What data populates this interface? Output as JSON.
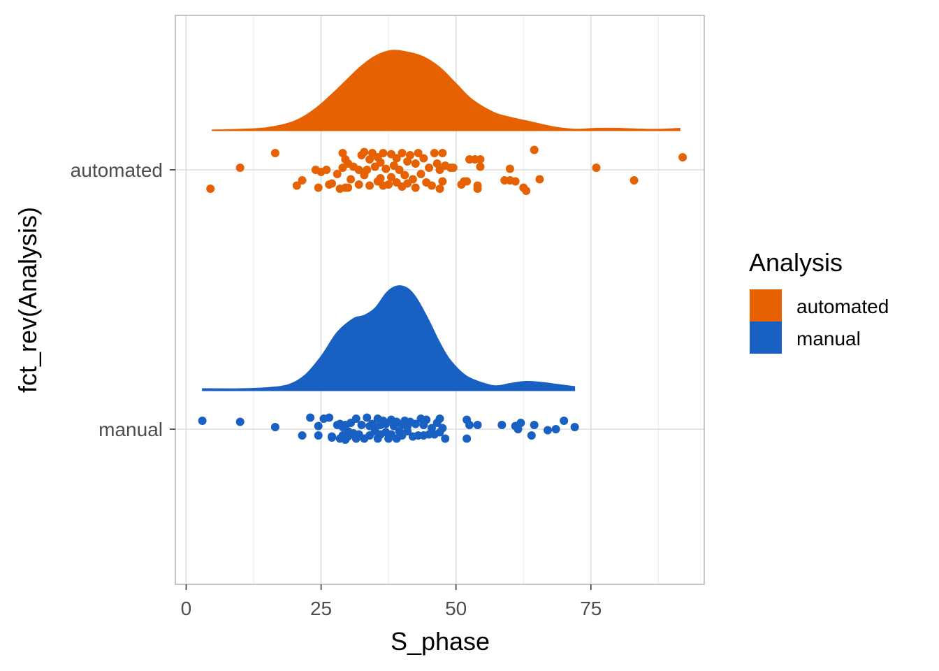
{
  "chart_data": {
    "type": "raincloud",
    "xlabel": "S_phase",
    "ylabel": "fct_rev(Analysis)",
    "xlim": [
      -2,
      96
    ],
    "x_ticks": [
      0,
      25,
      50,
      75
    ],
    "x_tick_labels": [
      "0",
      "25",
      "50",
      "75"
    ],
    "grid": true,
    "legend": {
      "title": "Analysis",
      "position": "right",
      "entries": [
        {
          "label": "automated",
          "color": "#E66101"
        },
        {
          "label": "manual",
          "color": "#1960C3"
        }
      ]
    },
    "categories": [
      "automated",
      "manual"
    ],
    "series": [
      {
        "name": "automated",
        "color": "#E66101",
        "density": {
          "x": [
            4.8,
            10,
            15,
            20,
            24,
            28,
            32,
            35,
            38,
            41,
            44,
            47,
            50,
            53,
            57,
            60,
            64,
            68,
            72,
            76,
            80,
            85,
            88,
            91.5
          ],
          "density": [
            0.01,
            0.02,
            0.04,
            0.12,
            0.28,
            0.52,
            0.78,
            0.93,
            1.0,
            0.98,
            0.92,
            0.79,
            0.59,
            0.39,
            0.23,
            0.17,
            0.11,
            0.05,
            0.02,
            0.03,
            0.03,
            0.02,
            0.02,
            0.03
          ]
        },
        "points": [
          [
            4.5,
            -0.18
          ],
          [
            10,
            0.02
          ],
          [
            16.5,
            0.16
          ],
          [
            20.5,
            -0.15
          ],
          [
            21.5,
            -0.1
          ],
          [
            24,
            0.0
          ],
          [
            24.5,
            -0.17
          ],
          [
            25,
            -0.02
          ],
          [
            26,
            0.0
          ],
          [
            26.5,
            -0.14
          ],
          [
            27,
            -0.13
          ],
          [
            28,
            -0.04
          ],
          [
            28.5,
            -0.18
          ],
          [
            29,
            0.16
          ],
          [
            29,
            0.02
          ],
          [
            29.5,
            -0.17
          ],
          [
            29.5,
            0.1
          ],
          [
            30,
            -0.17
          ],
          [
            30,
            0.06
          ],
          [
            30.5,
            -0.09
          ],
          [
            31,
            0.03
          ],
          [
            32,
            -0.14
          ],
          [
            32,
            0.0
          ],
          [
            32.5,
            0.14
          ],
          [
            33,
            -0.05
          ],
          [
            33,
            0.17
          ],
          [
            33.5,
            0.0
          ],
          [
            34,
            0.1
          ],
          [
            34,
            -0.15
          ],
          [
            34.5,
            0.16
          ],
          [
            35,
            0.03
          ],
          [
            35.5,
            -0.11
          ],
          [
            35.5,
            0.12
          ],
          [
            36,
            -0.08
          ],
          [
            36,
            0.07
          ],
          [
            36.5,
            -0.15
          ],
          [
            36.5,
            0.16
          ],
          [
            37,
            0.01
          ],
          [
            37.5,
            -0.14
          ],
          [
            38,
            0.15
          ],
          [
            38,
            -0.07
          ],
          [
            38.5,
            0.04
          ],
          [
            39,
            -0.12
          ],
          [
            39,
            0.11
          ],
          [
            39.5,
            0.0
          ],
          [
            40,
            -0.16
          ],
          [
            40,
            0.16
          ],
          [
            40.5,
            -0.05
          ],
          [
            41,
            0.08
          ],
          [
            41,
            -0.13
          ],
          [
            41.5,
            0.14
          ],
          [
            42,
            -0.09
          ],
          [
            42.5,
            0.06
          ],
          [
            42.5,
            -0.17
          ],
          [
            43,
            0.16
          ],
          [
            43.5,
            -0.04
          ],
          [
            44,
            0.11
          ],
          [
            44.5,
            -0.12
          ],
          [
            45,
            0.02
          ],
          [
            45.5,
            -0.15
          ],
          [
            46,
            0.16
          ],
          [
            46.5,
            0.06
          ],
          [
            47,
            -0.18
          ],
          [
            47,
            0.0
          ],
          [
            47.5,
            -0.11
          ],
          [
            47.5,
            0.16
          ],
          [
            48,
            0.04
          ],
          [
            49,
            0.02
          ],
          [
            49.5,
            0.02
          ],
          [
            51,
            -0.14
          ],
          [
            51.5,
            -0.11
          ],
          [
            52,
            -0.11
          ],
          [
            52.5,
            0.1
          ],
          [
            53.5,
            0.1
          ],
          [
            54,
            -0.18
          ],
          [
            54,
            -0.15
          ],
          [
            54.5,
            0.1
          ],
          [
            54.5,
            0.03
          ],
          [
            59,
            -0.1
          ],
          [
            60,
            -0.1
          ],
          [
            60,
            0.01
          ],
          [
            61,
            -0.11
          ],
          [
            62.5,
            -0.17
          ],
          [
            63,
            -0.2
          ],
          [
            64.5,
            0.19
          ],
          [
            65.5,
            -0.09
          ],
          [
            76,
            0.02
          ],
          [
            83,
            -0.1
          ],
          [
            92,
            0.12
          ]
        ]
      },
      {
        "name": "manual",
        "color": "#1960C3",
        "density": {
          "x": [
            3,
            10,
            15,
            19,
            22,
            25,
            28,
            31,
            33,
            35,
            37,
            38.5,
            40,
            41.5,
            43,
            45,
            47,
            49,
            52,
            56,
            58,
            60,
            63,
            66,
            69,
            72
          ],
          "density": [
            0.02,
            0.02,
            0.03,
            0.06,
            0.15,
            0.33,
            0.56,
            0.69,
            0.72,
            0.79,
            0.93,
            0.99,
            1.0,
            0.96,
            0.86,
            0.67,
            0.46,
            0.29,
            0.14,
            0.06,
            0.05,
            0.07,
            0.09,
            0.08,
            0.06,
            0.04
          ]
        },
        "points": [
          [
            3,
            0.08
          ],
          [
            10,
            0.07
          ],
          [
            16.5,
            0.02
          ],
          [
            21.5,
            -0.06
          ],
          [
            23,
            0.11
          ],
          [
            24.5,
            0.03
          ],
          [
            24.5,
            -0.06
          ],
          [
            25.5,
            0.1
          ],
          [
            26.5,
            0.11
          ],
          [
            27,
            -0.07
          ],
          [
            27,
            -0.08
          ],
          [
            28,
            0.04
          ],
          [
            28.5,
            -0.09
          ],
          [
            28.5,
            0.05
          ],
          [
            29,
            0.02
          ],
          [
            29,
            -0.06
          ],
          [
            29.5,
            -0.1
          ],
          [
            29.5,
            0.04
          ],
          [
            30,
            -0.02
          ],
          [
            30,
            -0.07
          ],
          [
            30.5,
            0.06
          ],
          [
            31,
            -0.04
          ],
          [
            31.5,
            -0.09
          ],
          [
            31.5,
            0.1
          ],
          [
            32,
            -0.05
          ],
          [
            32.5,
            0.04
          ],
          [
            33,
            -0.09
          ],
          [
            33.5,
            0.11
          ],
          [
            34,
            0.03
          ],
          [
            34,
            -0.06
          ],
          [
            34.5,
            0.05
          ],
          [
            35,
            -0.02
          ],
          [
            35,
            0.01
          ],
          [
            35.5,
            0.1
          ],
          [
            35.5,
            -0.09
          ],
          [
            36,
            0.04
          ],
          [
            36,
            -0.05
          ],
          [
            36.5,
            0.08
          ],
          [
            37,
            -0.03
          ],
          [
            37,
            0.05
          ],
          [
            37.5,
            -0.09
          ],
          [
            38,
            0.09
          ],
          [
            38,
            -0.05
          ],
          [
            38.5,
            0.03
          ],
          [
            39,
            -0.09
          ],
          [
            39,
            0.07
          ],
          [
            39.5,
            -0.02
          ],
          [
            40,
            0.04
          ],
          [
            40,
            -0.06
          ],
          [
            40.5,
            0.08
          ],
          [
            41,
            -0.02
          ],
          [
            41,
            0.03
          ],
          [
            41.5,
            0.07
          ],
          [
            42,
            -0.07
          ],
          [
            42.5,
            0.05
          ],
          [
            43,
            -0.06
          ],
          [
            43.5,
            0.1
          ],
          [
            44,
            0.04
          ],
          [
            44,
            -0.06
          ],
          [
            44.5,
            0.09
          ],
          [
            45,
            -0.05
          ],
          [
            45.5,
            0.01
          ],
          [
            46,
            -0.05
          ],
          [
            46.5,
            0.06
          ],
          [
            47,
            -0.03
          ],
          [
            47,
            0.1
          ],
          [
            47.5,
            0.01
          ],
          [
            48,
            -0.09
          ],
          [
            52,
            0.09
          ],
          [
            52,
            -0.09
          ],
          [
            52.5,
            0.04
          ],
          [
            54,
            0.04
          ],
          [
            58.5,
            0.04
          ],
          [
            61,
            0.03
          ],
          [
            61.5,
            0.0
          ],
          [
            62,
            0.06
          ],
          [
            64,
            -0.06
          ],
          [
            64.5,
            0.04
          ],
          [
            67,
            -0.01
          ],
          [
            68.5,
            0.0
          ],
          [
            70,
            0.08
          ],
          [
            72,
            0.02
          ]
        ]
      }
    ]
  }
}
